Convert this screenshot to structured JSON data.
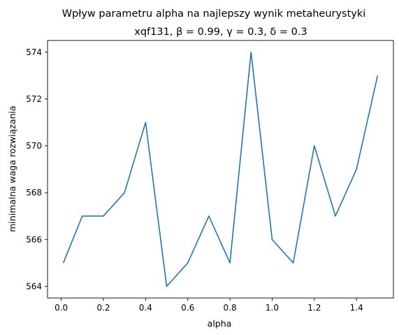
{
  "chart_data": {
    "type": "line",
    "title": "Wpływ parametru alpha na najlepszy wynik metaheurystyki",
    "subtitle": "xqf131, β = 0.99, γ = 0.3, δ = 0.3",
    "xlabel": "alpha",
    "ylabel": "minimalna waga rozwiązania",
    "xlim": [
      -0.065,
      1.575
    ],
    "ylim": [
      563.5,
      574.5
    ],
    "xticks": [
      "0.0",
      "0.2",
      "0.4",
      "0.6",
      "0.8",
      "1.0",
      "1.2",
      "1.4"
    ],
    "yticks": [
      "564",
      "566",
      "568",
      "570",
      "572",
      "574"
    ],
    "grid": false,
    "series": [
      {
        "color": "#1f77b4",
        "x": [
          0.01,
          0.1,
          0.2,
          0.3,
          0.4,
          0.5,
          0.6,
          0.7,
          0.8,
          0.9,
          1.0,
          1.1,
          1.2,
          1.3,
          1.4,
          1.5
        ],
        "y": [
          565,
          567,
          567,
          568,
          571,
          564,
          565,
          567,
          565,
          574,
          566,
          565,
          570,
          567,
          569,
          573
        ]
      }
    ]
  }
}
